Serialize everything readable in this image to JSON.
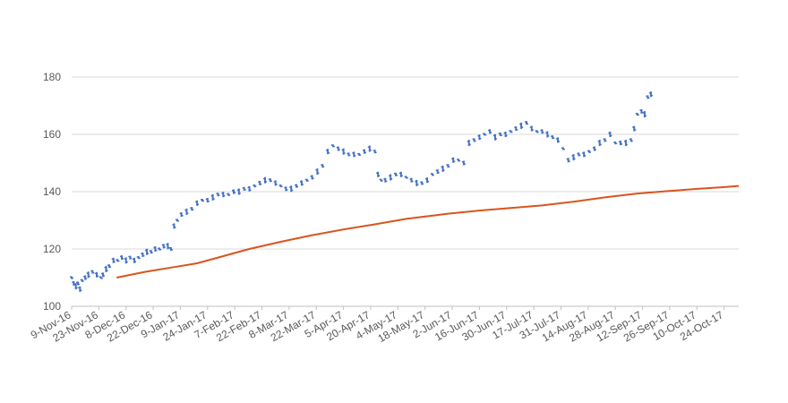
{
  "chart_data": {
    "type": "line",
    "title": "",
    "xlabel": "",
    "ylabel": "",
    "ylim": [
      100,
      180
    ],
    "y_ticks": [
      100,
      120,
      140,
      160,
      180
    ],
    "grid": "horizontal",
    "legend": "none",
    "x_ticks": [
      "9-Nov-16",
      "23-Nov-16",
      "8-Dec-16",
      "22-Dec-16",
      "9-Jan-17",
      "24-Jan-17",
      "7-Feb-17",
      "22-Feb-17",
      "8-Mar-17",
      "22-Mar-17",
      "5-Apr-17",
      "20-Apr-17",
      "4-May-17",
      "18-May-17",
      "2-Jun-17",
      "16-Jun-17",
      "30-Jun-17",
      "17-Jul-17",
      "31-Jul-17",
      "14-Aug-17",
      "28-Aug-17",
      "12-Sep-17",
      "26-Sep-17",
      "10-Oct-17",
      "24-Oct-17"
    ],
    "series": [
      {
        "kind": "ohlc-bars",
        "color": "#4472C4",
        "points": [
          [
            0,
            110
          ],
          [
            0.2,
            108
          ],
          [
            0.4,
            107
          ],
          [
            0.6,
            108
          ],
          [
            0.8,
            106
          ],
          [
            1.0,
            109
          ],
          [
            1.3,
            110
          ],
          [
            1.6,
            111
          ],
          [
            2.0,
            112
          ],
          [
            2.4,
            111
          ],
          [
            2.8,
            110
          ],
          [
            3.0,
            111
          ],
          [
            3.3,
            113
          ],
          [
            3.6,
            114
          ],
          [
            4.0,
            116
          ],
          [
            4.4,
            116
          ],
          [
            4.8,
            117
          ],
          [
            5.2,
            116
          ],
          [
            5.6,
            117
          ],
          [
            6.0,
            116
          ],
          [
            6.4,
            117
          ],
          [
            6.8,
            118
          ],
          [
            7.2,
            119
          ],
          [
            7.6,
            119
          ],
          [
            8.0,
            120
          ],
          [
            8.4,
            120
          ],
          [
            8.8,
            121
          ],
          [
            9.2,
            121
          ],
          [
            9.5,
            120
          ],
          [
            9.8,
            128
          ],
          [
            10.1,
            130
          ],
          [
            10.5,
            132
          ],
          [
            11.0,
            133
          ],
          [
            11.5,
            134
          ],
          [
            12.0,
            136
          ],
          [
            12.5,
            137
          ],
          [
            13.0,
            137
          ],
          [
            13.5,
            138
          ],
          [
            14.0,
            139
          ],
          [
            14.5,
            139
          ],
          [
            15.0,
            139
          ],
          [
            15.5,
            140
          ],
          [
            16.0,
            140
          ],
          [
            16.5,
            141
          ],
          [
            17.0,
            141
          ],
          [
            17.5,
            142
          ],
          [
            18.0,
            143
          ],
          [
            18.5,
            144
          ],
          [
            19.0,
            144
          ],
          [
            19.5,
            143
          ],
          [
            20.0,
            142
          ],
          [
            20.5,
            141
          ],
          [
            21.0,
            141
          ],
          [
            21.5,
            142
          ],
          [
            22.0,
            143
          ],
          [
            22.5,
            144
          ],
          [
            23.0,
            145
          ],
          [
            23.5,
            147
          ],
          [
            24.0,
            149
          ],
          [
            24.5,
            154
          ],
          [
            25.0,
            156
          ],
          [
            25.5,
            155
          ],
          [
            26.0,
            154
          ],
          [
            26.5,
            153
          ],
          [
            27.0,
            153
          ],
          [
            27.5,
            153
          ],
          [
            28.0,
            154
          ],
          [
            28.5,
            155
          ],
          [
            29.0,
            154
          ],
          [
            29.3,
            146
          ],
          [
            29.6,
            144
          ],
          [
            30.0,
            144
          ],
          [
            30.5,
            145
          ],
          [
            31.0,
            146
          ],
          [
            31.5,
            146
          ],
          [
            32.0,
            145
          ],
          [
            32.5,
            144
          ],
          [
            33.0,
            143
          ],
          [
            33.5,
            143
          ],
          [
            34.0,
            144
          ],
          [
            34.5,
            146
          ],
          [
            35.0,
            147
          ],
          [
            35.5,
            148
          ],
          [
            36.0,
            149
          ],
          [
            36.5,
            151
          ],
          [
            37.0,
            151
          ],
          [
            37.5,
            150
          ],
          [
            38.0,
            157
          ],
          [
            38.5,
            158
          ],
          [
            39.0,
            159
          ],
          [
            39.5,
            160
          ],
          [
            40.0,
            161
          ],
          [
            40.5,
            159
          ],
          [
            41.0,
            160
          ],
          [
            41.5,
            160
          ],
          [
            42.0,
            161
          ],
          [
            42.5,
            162
          ],
          [
            43.0,
            163
          ],
          [
            43.5,
            164
          ],
          [
            44.0,
            162
          ],
          [
            44.5,
            161
          ],
          [
            45.0,
            161
          ],
          [
            45.5,
            160
          ],
          [
            46.0,
            159
          ],
          [
            46.5,
            158
          ],
          [
            47.0,
            155
          ],
          [
            47.5,
            151
          ],
          [
            48.0,
            152
          ],
          [
            48.5,
            153
          ],
          [
            49.0,
            153
          ],
          [
            49.5,
            154
          ],
          [
            50.0,
            155
          ],
          [
            50.5,
            157
          ],
          [
            51.0,
            158
          ],
          [
            51.5,
            160
          ],
          [
            52.0,
            157
          ],
          [
            52.5,
            157
          ],
          [
            53.0,
            157
          ],
          [
            53.5,
            158
          ],
          [
            53.8,
            162
          ],
          [
            54.1,
            167
          ],
          [
            54.5,
            168
          ],
          [
            54.8,
            167
          ],
          [
            55.1,
            173
          ],
          [
            55.4,
            174
          ]
        ]
      },
      {
        "kind": "moving-average",
        "color": "#D9541E",
        "points": [
          [
            4.3,
            110
          ],
          [
            7.0,
            112
          ],
          [
            9.5,
            113.5
          ],
          [
            12,
            115
          ],
          [
            14,
            117
          ],
          [
            17,
            120
          ],
          [
            20,
            122.5
          ],
          [
            23,
            124.8
          ],
          [
            26,
            126.8
          ],
          [
            29,
            128.6
          ],
          [
            32,
            130.5
          ],
          [
            36,
            132.3
          ],
          [
            39,
            133.4
          ],
          [
            42,
            134.3
          ],
          [
            45,
            135.2
          ],
          [
            48,
            136.5
          ],
          [
            51,
            138
          ],
          [
            54,
            139.3
          ],
          [
            57,
            140.2
          ],
          [
            60,
            141
          ],
          [
            62,
            141.5
          ],
          [
            63.8,
            142
          ]
        ]
      }
    ],
    "notes": ""
  }
}
